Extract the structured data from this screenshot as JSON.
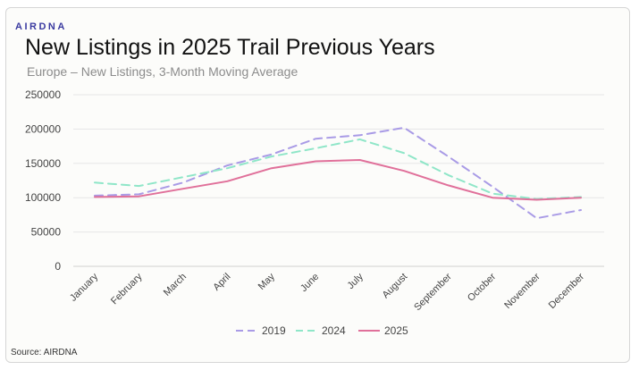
{
  "brand": "AIRDNA",
  "source": "Source: AIRDNA",
  "chart_data": {
    "type": "line",
    "title": "New Listings in 2025 Trail Previous Years",
    "subtitle": "Europe – New Listings, 3-Month Moving Average",
    "categories": [
      "January",
      "February",
      "March",
      "April",
      "May",
      "June",
      "July",
      "August",
      "September",
      "October",
      "November",
      "December"
    ],
    "y_ticks": [
      "0",
      "50000",
      "100000",
      "150000",
      "200000",
      "250000"
    ],
    "ylim": [
      0,
      250000
    ],
    "grid": true,
    "legend_position": "bottom",
    "series": [
      {
        "name": "2019",
        "color": "#a99be6",
        "dash": "dashed",
        "values": [
          103000,
          105000,
          122000,
          147000,
          163000,
          186000,
          191000,
          202000,
          160000,
          116000,
          70000,
          82000
        ]
      },
      {
        "name": "2024",
        "color": "#8fe6c8",
        "dash": "dashed",
        "values": [
          122000,
          117000,
          130000,
          143000,
          160000,
          172000,
          185000,
          165000,
          133000,
          106000,
          98000,
          101000
        ]
      },
      {
        "name": "2025",
        "color": "#e0709a",
        "dash": "solid",
        "values": [
          101000,
          102000,
          113000,
          124000,
          143000,
          153000,
          155000,
          139000,
          118000,
          100000,
          97000,
          100000
        ]
      }
    ]
  }
}
